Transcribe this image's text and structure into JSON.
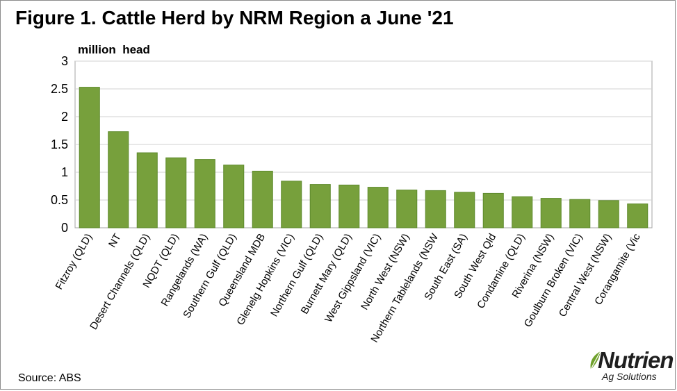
{
  "chart_data": {
    "type": "bar",
    "title": "Figure 1. Cattle Herd by NRM Region a June '21",
    "ylabel": "million  head",
    "xlabel": "",
    "ylim": [
      0,
      3
    ],
    "yticks": [
      "0",
      "0.5",
      "1",
      "1.5",
      "2",
      "2.5",
      "3"
    ],
    "grid": true,
    "legend": "none",
    "bar_color": "#77a03c",
    "categories": [
      "Fitzroy (QLD)",
      "NT",
      "Desert Channels (QLD)",
      "NQDT (QLD)",
      "Rangelands (WA)",
      "Southern Gulf (QLD)",
      "Queensland MDB",
      "Glenelg Hopkins (VIC)",
      "Northern Gulf (QLD)",
      "Burnett Mary (QLD)",
      "West Gippsland (VIC)",
      "North West (NSW)",
      "Northern Tablelands (NSW",
      "South East (SA)",
      "South West Qld",
      "Condamine (QLD)",
      "Riverina (NSW)",
      "Goulburn Broken (VIC)",
      "Central West (NSW)",
      "Corangamite (Vic"
    ],
    "values": [
      2.53,
      1.73,
      1.35,
      1.26,
      1.23,
      1.13,
      1.02,
      0.84,
      0.78,
      0.77,
      0.73,
      0.68,
      0.67,
      0.64,
      0.62,
      0.56,
      0.53,
      0.51,
      0.49,
      0.43
    ]
  },
  "source": "Source: ABS",
  "logo": {
    "name": "Nutrien",
    "subtitle": "Ag Solutions"
  }
}
